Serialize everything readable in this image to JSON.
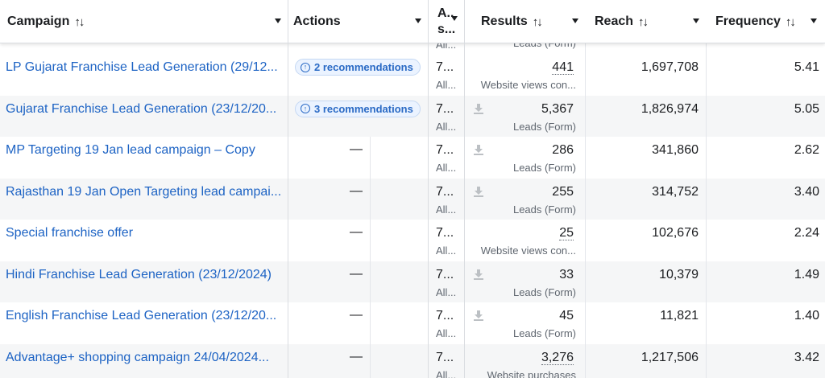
{
  "columns": {
    "campaign": "Campaign",
    "actions": "Actions",
    "attribution_top": "A..",
    "attribution_bottom": "s...",
    "results": "Results",
    "reach": "Reach",
    "frequency": "Frequency",
    "sort_glyph": "↑↓"
  },
  "peek_row": {
    "attribution": "All...",
    "results_sub": "Leads (Form)"
  },
  "rows": [
    {
      "name": "LP Gujarat Franchise Lead Generation (29/12...",
      "actions": "2 recommendations",
      "attr_top": "7...",
      "attr_bot": "All...",
      "result": "441",
      "result_sub": "Website views con...",
      "reach": "1,697,708",
      "frequency": "5.41"
    },
    {
      "name": "Gujarat Franchise Lead Generation (23/12/20...",
      "actions": "3 recommendations",
      "attr_top": "7...",
      "attr_bot": "All...",
      "result": "5,367",
      "result_sub": "Leads (Form)",
      "reach": "1,826,974",
      "frequency": "5.05"
    },
    {
      "name": "MP Targeting 19 Jan lead campaign – Copy",
      "actions": "—",
      "attr_top": "7...",
      "attr_bot": "All...",
      "result": "286",
      "result_sub": "Leads (Form)",
      "reach": "341,860",
      "frequency": "2.62"
    },
    {
      "name": "Rajasthan 19 Jan Open Targeting lead campai...",
      "actions": "—",
      "attr_top": "7...",
      "attr_bot": "All...",
      "result": "255",
      "result_sub": "Leads (Form)",
      "reach": "314,752",
      "frequency": "3.40"
    },
    {
      "name": "Special franchise offer",
      "actions": "—",
      "attr_top": "7...",
      "attr_bot": "All...",
      "result": "25",
      "result_sub": "Website views con...",
      "reach": "102,676",
      "frequency": "2.24"
    },
    {
      "name": "Hindi Franchise Lead Generation (23/12/2024)",
      "actions": "—",
      "attr_top": "7...",
      "attr_bot": "All...",
      "result": "33",
      "result_sub": "Leads (Form)",
      "reach": "10,379",
      "frequency": "1.49"
    },
    {
      "name": "English Franchise Lead Generation (23/12/20...",
      "actions": "—",
      "attr_top": "7...",
      "attr_bot": "All...",
      "result": "45",
      "result_sub": "Leads (Form)",
      "reach": "11,821",
      "frequency": "1.40"
    },
    {
      "name": "Advantage+ shopping campaign 24/04/2024...",
      "actions": "—",
      "attr_top": "7...",
      "attr_bot": "All...",
      "result": "3,276",
      "result_sub": "Website purchases",
      "reach": "1,217,506",
      "frequency": "3.42"
    }
  ]
}
